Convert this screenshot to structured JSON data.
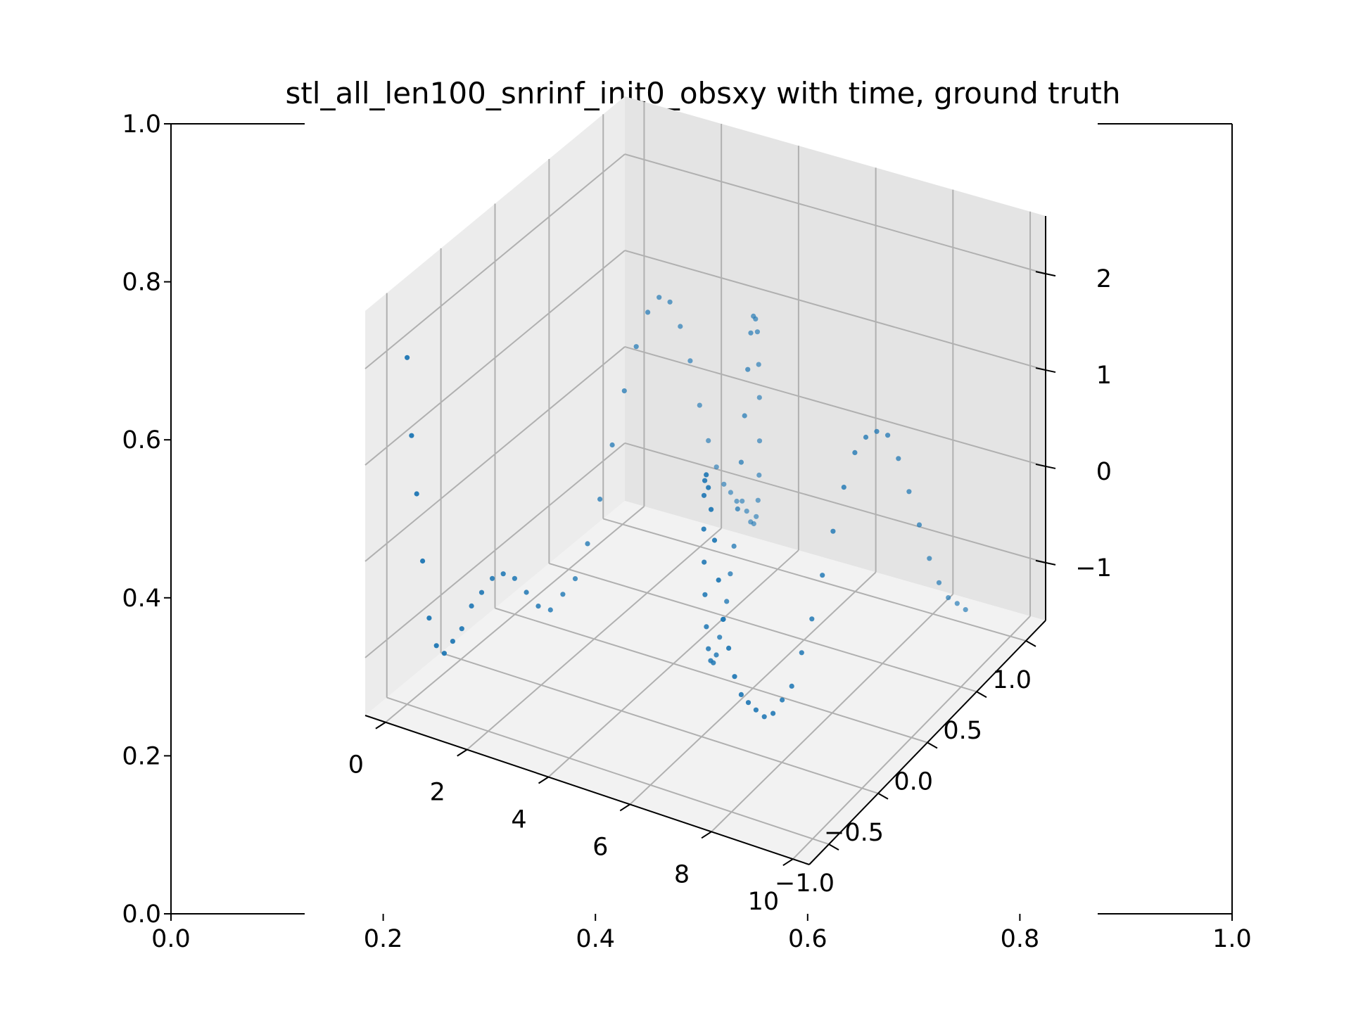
{
  "chart_data": {
    "type": "scatter",
    "title": "stl_all_len100_snrinf_init0_obsxy with time, ground truth",
    "colors": {
      "points": "#1f77b4",
      "pane_left": "#ececec",
      "pane_right": "#e4e4e4",
      "pane_floor": "#f2f2f2",
      "grid": "#b0b0b0"
    },
    "outer_axes": {
      "xlim": [
        0,
        1
      ],
      "ylim": [
        0,
        1
      ],
      "xticks": [
        "0.0",
        "0.2",
        "0.4",
        "0.6",
        "0.8",
        "1.0"
      ],
      "yticks": [
        "0.0",
        "0.2",
        "0.4",
        "0.6",
        "0.8",
        "1.0"
      ]
    },
    "axes3d": {
      "xlim": [
        -0.5,
        10.4
      ],
      "ylim": [
        -1.2,
        1.2
      ],
      "zlim": [
        -1.6,
        2.6
      ],
      "xticks": [
        "0",
        "2",
        "4",
        "6",
        "8",
        "10"
      ],
      "yticks": [
        "−1.0",
        "−0.5",
        "0.0",
        "0.5",
        "1.0"
      ],
      "zticks": [
        "−1",
        "0",
        "1",
        "2"
      ]
    },
    "series": [
      {
        "x": [
          0.0,
          0.1,
          0.2,
          0.3,
          0.4,
          0.5,
          0.6,
          0.7,
          0.8,
          0.9,
          1.0,
          1.1,
          1.2,
          1.3,
          1.4,
          1.5,
          1.6,
          1.7,
          1.8,
          1.9,
          2.0,
          2.1,
          2.2,
          2.3,
          2.4,
          2.5,
          2.6,
          2.7,
          2.8,
          2.9,
          3.0,
          3.1,
          3.2,
          3.3,
          3.4,
          3.5,
          3.6,
          3.7,
          3.8,
          3.9,
          4.0,
          4.1,
          4.2,
          4.3,
          4.4,
          4.5,
          4.6,
          4.7,
          4.8,
          4.9,
          5.0,
          5.1,
          5.2,
          5.3,
          5.4,
          5.5,
          5.6,
          5.7,
          5.8,
          5.9,
          6.0,
          6.1,
          6.2,
          6.3,
          6.4,
          6.5,
          6.6,
          6.7,
          6.8,
          6.9,
          7.0,
          7.1,
          7.2,
          7.3,
          7.4,
          7.5,
          7.6,
          7.7,
          7.8,
          7.9,
          8.0,
          8.1,
          8.2,
          8.3,
          8.4,
          8.5,
          8.6,
          8.7,
          8.8,
          8.9,
          9.0,
          9.1,
          9.2,
          9.3,
          9.4,
          9.5,
          9.6,
          9.7,
          9.8,
          9.9
        ],
        "y": [
          -1.0,
          -0.996,
          -0.986,
          -0.969,
          -0.946,
          -0.916,
          -0.88,
          -0.839,
          -0.792,
          -0.739,
          -0.682,
          -0.62,
          -0.555,
          -0.486,
          -0.413,
          -0.339,
          -0.262,
          -0.183,
          -0.104,
          -0.025,
          0.054,
          0.133,
          0.21,
          0.285,
          0.357,
          0.427,
          0.493,
          0.554,
          0.611,
          0.663,
          0.709,
          0.749,
          0.783,
          0.81,
          0.831,
          0.845,
          0.852,
          0.852,
          0.845,
          0.831,
          0.811,
          0.784,
          0.751,
          0.712,
          0.667,
          0.617,
          0.562,
          0.503,
          0.44,
          0.373,
          0.304,
          0.233,
          0.16,
          0.086,
          0.012,
          -0.062,
          -0.136,
          -0.208,
          -0.279,
          -0.347,
          -0.412,
          -0.474,
          -0.532,
          -0.585,
          -0.633,
          -0.676,
          -0.713,
          -0.745,
          -0.77,
          -0.789,
          -0.802,
          -0.808,
          -0.808,
          -0.801,
          -0.788,
          -0.769,
          -0.744,
          -0.713,
          -0.677,
          -0.635,
          -0.588,
          -0.537,
          -0.482,
          -0.423,
          -0.361,
          -0.296,
          -0.229,
          -0.161,
          -0.091,
          -0.021,
          0.049,
          0.119,
          0.187,
          0.254,
          0.318,
          0.379,
          0.437,
          0.491,
          0.541,
          0.586
        ],
        "z": [
          2.0,
          1.2,
          0.6,
          -0.1,
          -0.7,
          -1.0,
          -1.1,
          -1.0,
          -0.9,
          -0.7,
          -0.6,
          -0.5,
          -0.5,
          -0.6,
          -0.8,
          -1.0,
          -1.1,
          -1.0,
          -0.9,
          -0.6,
          -0.2,
          0.3,
          0.8,
          1.2,
          1.5,
          1.6,
          1.5,
          1.2,
          0.8,
          0.3,
          -0.1,
          -0.4,
          -0.6,
          -0.7,
          -0.8,
          -0.8,
          -0.9,
          -1.0,
          -1.0,
          -0.9,
          -0.7,
          -0.4,
          0.0,
          0.5,
          0.9,
          1.3,
          1.5,
          1.6,
          1.5,
          1.2,
          0.8,
          0.4,
          0.0,
          -0.3,
          -0.5,
          -0.7,
          -0.8,
          -0.9,
          -1.0,
          -1.0,
          -0.9,
          -0.7,
          -0.4,
          0.0,
          0.4,
          0.8,
          1.2,
          1.4,
          1.5,
          1.4,
          1.2,
          0.9,
          0.5,
          0.1,
          -0.2,
          -0.5,
          -0.7,
          -0.8,
          -0.9,
          -1.0,
          -1.0,
          -0.9,
          -0.8,
          -0.5,
          -0.2,
          0.2,
          0.6,
          1.0,
          1.3,
          1.4,
          1.4,
          1.3,
          1.0,
          0.6,
          0.2,
          -0.2,
          -0.5,
          -0.7,
          -0.8,
          -0.9
        ]
      }
    ]
  }
}
